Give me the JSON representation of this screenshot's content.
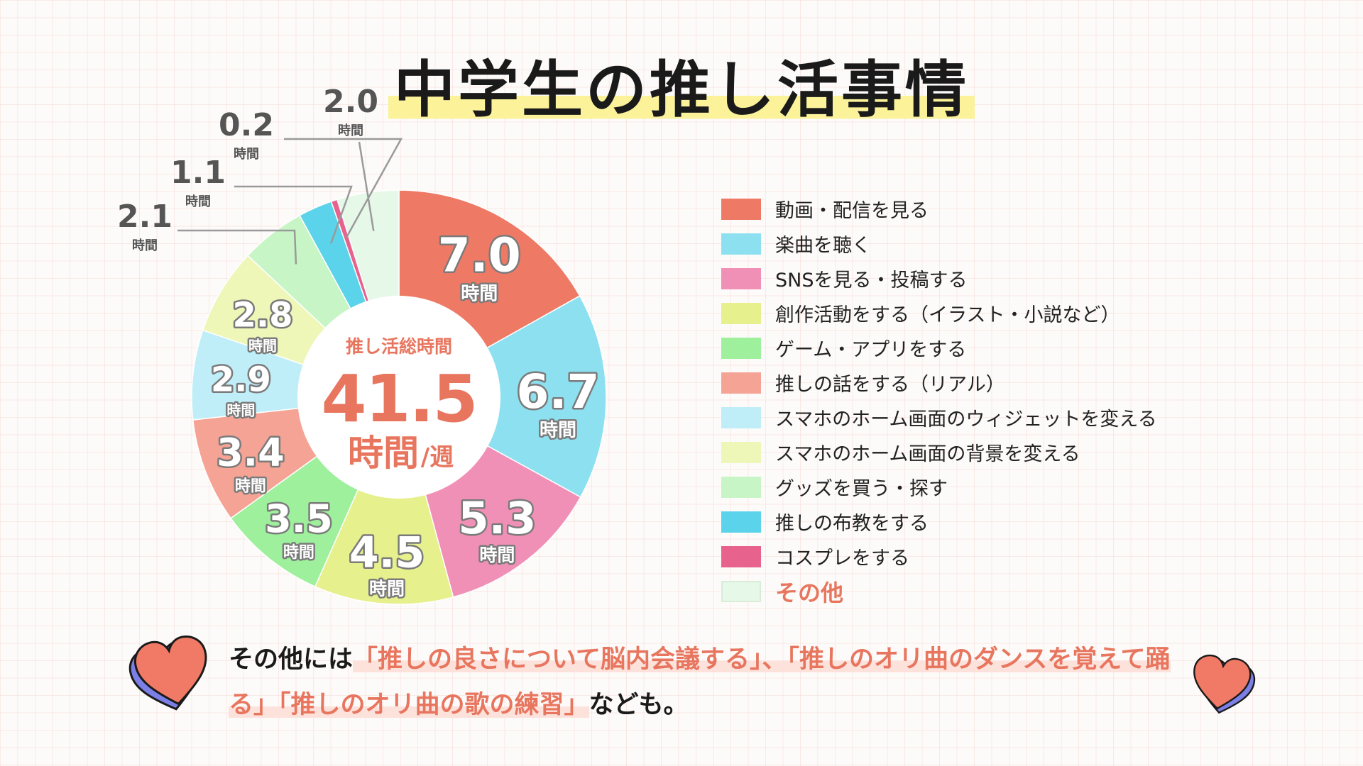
{
  "title": "中学生の推し活事情",
  "center": {
    "label": "推し活総時間",
    "value": "41.5",
    "unit": "時間",
    "unit_suffix": "/週"
  },
  "unit_label": "時間",
  "chart_data": {
    "type": "pie",
    "style": "donut",
    "total": 41.5,
    "categories": [
      "動画・配信を見る",
      "楽曲を聴く",
      "SNSを見る・投稿する",
      "創作活動をする（イラスト・小説など）",
      "ゲーム・アプリをする",
      "推しの話をする（リアル）",
      "スマホのホーム画面のウィジェットを変える",
      "スマホのホーム画面の背景を変える",
      "グッズを買う・探す",
      "推しの布教をする",
      "コスプレをする",
      "その他"
    ],
    "values": [
      7.0,
      6.7,
      5.3,
      4.5,
      3.5,
      3.4,
      2.9,
      2.8,
      2.1,
      1.1,
      0.2,
      2.0
    ],
    "value_labels": [
      "7.0",
      "6.7",
      "5.3",
      "4.5",
      "3.5",
      "3.4",
      "2.9",
      "2.8",
      "2.1",
      "1.1",
      "0.2",
      "2.0"
    ],
    "colors": [
      "#ee7a66",
      "#8de0f0",
      "#f190b6",
      "#e6f08c",
      "#9ef09c",
      "#f5a394",
      "#bfeef8",
      "#eef6b8",
      "#c7f5c5",
      "#5bd3ea",
      "#e8628e",
      "#e6f8e8"
    ],
    "legend_position": "right"
  },
  "note": {
    "prefix": "その他には",
    "highlights": [
      "「推しの良さについて脳内会議する」、「推しのオリ曲のダンスを覚えて踊る」「推しのオリ曲の歌の練習」"
    ],
    "suffix": "なども。"
  },
  "decor": {
    "heart_color": "#f07a66",
    "heart_shadow_color": "#7b7fe6"
  }
}
